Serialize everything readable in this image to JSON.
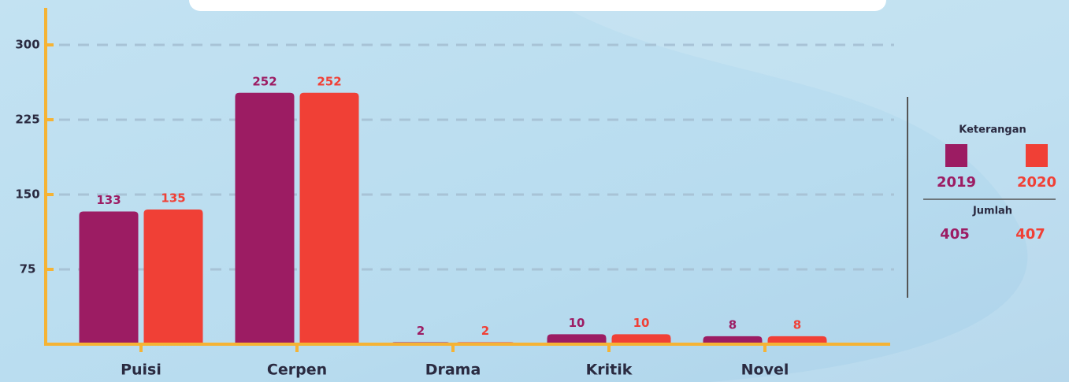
{
  "chart_data": {
    "type": "bar",
    "categories": [
      "Puisi",
      "Cerpen",
      "Drama",
      "Kritik",
      "Novel"
    ],
    "series": [
      {
        "name": "2019",
        "color": "#9c1c63",
        "values": [
          133,
          252,
          2,
          10,
          8
        ],
        "total": 405
      },
      {
        "name": "2020",
        "color": "#f04036",
        "values": [
          135,
          252,
          2,
          10,
          8
        ],
        "total": 407
      }
    ],
    "ylim": [
      0,
      330
    ],
    "yticks": [
      75,
      150,
      225,
      300
    ],
    "grid": true,
    "legend_title": "Keterangan",
    "total_label": "Jumlah",
    "legend_position": "right"
  }
}
